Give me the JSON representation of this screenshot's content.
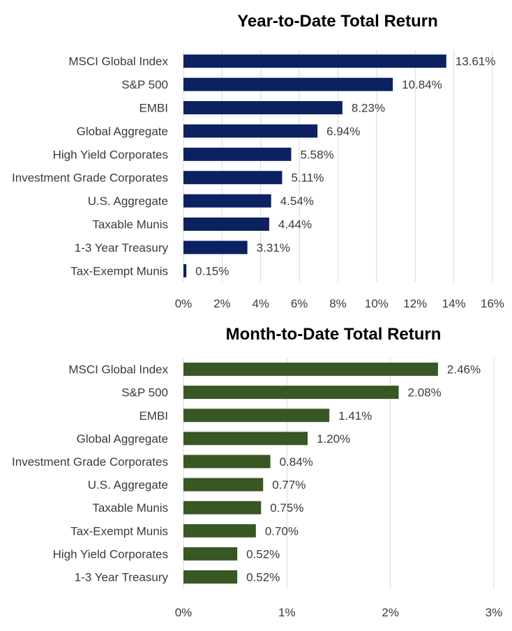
{
  "chart_data": [
    {
      "type": "bar",
      "orientation": "horizontal",
      "title": "Year-to-Date Total Return",
      "categories": [
        "MSCI Global Index",
        "S&P 500",
        "EMBI",
        "Global Aggregate",
        "High Yield Corporates",
        "Investment Grade Corporates",
        "U.S. Aggregate",
        "Taxable Munis",
        "1-3 Year Treasury",
        "Tax-Exempt Munis"
      ],
      "values": [
        13.61,
        10.84,
        8.23,
        6.94,
        5.58,
        5.11,
        4.54,
        4.44,
        3.31,
        0.15
      ],
      "value_labels": [
        "13.61%",
        "10.84%",
        "8.23%",
        "6.94%",
        "5.58%",
        "5.11%",
        "4.54%",
        "4.44%",
        "3.31%",
        "0.15%"
      ],
      "xlim": [
        0,
        16
      ],
      "ticks": [
        0,
        2,
        4,
        6,
        8,
        10,
        12,
        14,
        16
      ],
      "tick_labels": [
        "0%",
        "2%",
        "4%",
        "6%",
        "8%",
        "10%",
        "12%",
        "14%",
        "16%"
      ],
      "grid": true,
      "bar_color": "#0b2161"
    },
    {
      "type": "bar",
      "orientation": "horizontal",
      "title": "Month-to-Date Total Return",
      "categories": [
        "MSCI Global Index",
        "S&P 500",
        "EMBI",
        "Global Aggregate",
        "Investment Grade Corporates",
        "U.S. Aggregate",
        "Taxable Munis",
        "Tax-Exempt Munis",
        "High Yield Corporates",
        "1-3 Year Treasury"
      ],
      "values": [
        2.46,
        2.08,
        1.41,
        1.2,
        0.84,
        0.77,
        0.75,
        0.7,
        0.52,
        0.52
      ],
      "value_labels": [
        "2.46%",
        "2.08%",
        "1.41%",
        "1.20%",
        "0.84%",
        "0.77%",
        "0.75%",
        "0.70%",
        "0.52%",
        "0.52%"
      ],
      "xlim": [
        0,
        3
      ],
      "ticks": [
        0,
        1,
        2,
        3
      ],
      "tick_labels": [
        "0%",
        "1%",
        "2%",
        "3%"
      ],
      "grid": true,
      "bar_color": "#385723"
    }
  ]
}
